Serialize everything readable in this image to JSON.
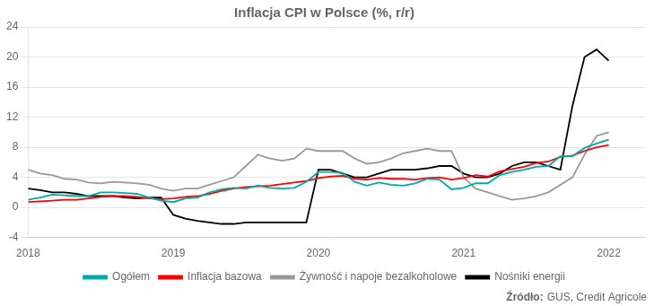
{
  "chart_data": {
    "type": "line",
    "title": "Inflacja CPI w Polsce (%, r/r)",
    "source_label": "Źródło:",
    "source_text": "GUS, Credit Agricole",
    "x": [
      2018.0,
      2018.0833333333333,
      2018.1666666666667,
      2018.25,
      2018.3333333333333,
      2018.4166666666667,
      2018.5,
      2018.5833333333333,
      2018.6666666666667,
      2018.75,
      2018.8333333333333,
      2018.9166666666667,
      2019.0,
      2019.0833333333333,
      2019.1666666666667,
      2019.25,
      2019.3333333333333,
      2019.4166666666667,
      2019.5,
      2019.5833333333333,
      2019.6666666666667,
      2019.75,
      2019.8333333333333,
      2019.9166666666667,
      2020.0,
      2020.0833333333333,
      2020.1666666666667,
      2020.25,
      2020.3333333333333,
      2020.4166666666667,
      2020.5,
      2020.5833333333333,
      2020.6666666666667,
      2020.75,
      2020.8333333333333,
      2020.9166666666667,
      2021.0,
      2021.0833333333333,
      2021.1666666666667,
      2021.25,
      2021.3333333333333,
      2021.4166666666667,
      2021.5,
      2021.5833333333333,
      2021.6666666666667,
      2021.75,
      2021.8333333333333,
      2021.9166666666667,
      2022.0
    ],
    "series": [
      {
        "name": "Ogółem",
        "color": "#00AAAA",
        "values": [
          1.0,
          1.3,
          1.7,
          1.6,
          1.5,
          1.5,
          2.0,
          2.0,
          1.9,
          1.8,
          1.3,
          0.9,
          0.7,
          1.2,
          1.3,
          2.0,
          2.4,
          2.6,
          2.5,
          2.9,
          2.6,
          2.5,
          2.6,
          3.4,
          4.7,
          4.7,
          4.6,
          3.4,
          2.9,
          3.3,
          3.0,
          2.9,
          3.2,
          3.8,
          3.7,
          2.4,
          2.6,
          3.2,
          3.2,
          4.3,
          4.7,
          5.0,
          5.4,
          5.5,
          6.8,
          6.8,
          7.9,
          8.5,
          9.0
        ]
      },
      {
        "name": "Inflacja bazowa",
        "color": "#FF0000",
        "values": [
          0.7,
          0.8,
          0.9,
          1.0,
          1.0,
          1.2,
          1.4,
          1.5,
          1.5,
          1.4,
          1.2,
          1.1,
          1.2,
          1.4,
          1.5,
          1.8,
          2.2,
          2.5,
          2.7,
          2.8,
          2.9,
          3.1,
          3.3,
          3.5,
          3.9,
          4.1,
          4.2,
          3.8,
          3.7,
          3.9,
          3.8,
          3.8,
          3.7,
          3.9,
          4.0,
          3.7,
          3.9,
          4.3,
          4.1,
          4.8,
          5.1,
          5.4,
          5.9,
          6.1,
          6.7,
          6.9,
          7.5,
          8.0,
          8.3
        ]
      },
      {
        "name": "Żywność i napoje bezalkoholowe",
        "color": "#999999",
        "values": [
          5.0,
          4.5,
          4.3,
          3.8,
          3.7,
          3.3,
          3.2,
          3.4,
          3.3,
          3.2,
          3.0,
          2.5,
          2.2,
          2.5,
          2.5,
          3.0,
          3.5,
          4.0,
          5.5,
          7.0,
          6.5,
          6.2,
          6.5,
          7.8,
          7.5,
          7.5,
          7.5,
          6.5,
          5.8,
          6.0,
          6.5,
          7.2,
          7.5,
          7.8,
          7.5,
          7.5,
          4.0,
          2.5,
          2.0,
          1.5,
          1.0,
          1.2,
          1.5,
          2.0,
          3.0,
          4.0,
          7.0,
          9.5,
          10.0
        ]
      },
      {
        "name": "Nośniki energii",
        "color": "#000000",
        "values": [
          2.5,
          2.3,
          2.0,
          2.0,
          1.8,
          1.5,
          1.5,
          1.5,
          1.3,
          1.2,
          1.3,
          1.3,
          -1.0,
          -1.5,
          -1.8,
          -2.0,
          -2.2,
          -2.2,
          -2.0,
          -2.0,
          -2.0,
          -2.0,
          -2.0,
          -2.0,
          5.0,
          5.0,
          4.5,
          4.0,
          4.0,
          4.5,
          5.0,
          5.0,
          5.0,
          5.2,
          5.5,
          5.5,
          4.5,
          4.0,
          4.0,
          4.5,
          5.5,
          6.0,
          6.0,
          5.5,
          5.0,
          13.5,
          20.0,
          21.0,
          19.5
        ]
      }
    ],
    "xlim": [
      2018.0,
      2022.25
    ],
    "xticks": [
      2018,
      2019,
      2020,
      2021,
      2022
    ],
    "ylim": [
      -4,
      24
    ],
    "yticks": [
      -4,
      0,
      4,
      8,
      12,
      16,
      20,
      24
    ],
    "grid": "y",
    "legend": "bottom"
  }
}
